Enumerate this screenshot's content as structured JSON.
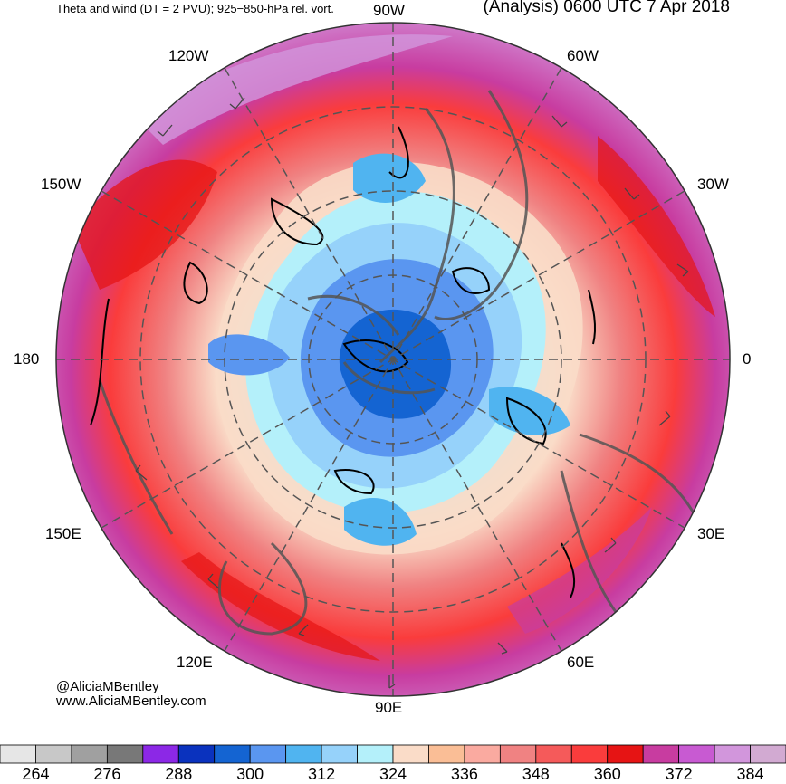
{
  "header": {
    "left_title": "Theta and wind (DT = 2 PVU); 925−850-hPa rel. vort.",
    "right_title": "(Analysis) 0600 UTC 7 Apr 2018"
  },
  "longitude_labels": {
    "w90": "90W",
    "w60": "60W",
    "w30": "30W",
    "zero": "0",
    "e30": "30E",
    "e60": "60E",
    "e90": "90E",
    "e120": "120E",
    "e150": "150E",
    "d180": "180",
    "w150": "150W",
    "w120": "120W"
  },
  "credits": {
    "handle": "@AliciaMBentley",
    "website": "www.AliciaMBentley.com"
  },
  "colorbar": {
    "colors": [
      "#e6e6e6",
      "#c8c8c8",
      "#a0a0a0",
      "#787878",
      "#8c28e6",
      "#0a32be",
      "#1464d2",
      "#5a96f0",
      "#50b4f0",
      "#96d2fa",
      "#b4f0fa",
      "#fadcc8",
      "#fabe96",
      "#faaaa0",
      "#f08282",
      "#f55a5a",
      "#fa3c3c",
      "#e61414",
      "#c83ca0",
      "#c85ad2",
      "#d296dc",
      "#d2aad2"
    ],
    "tick_labels": [
      "264",
      "276",
      "288",
      "300",
      "312",
      "324",
      "336",
      "348",
      "360",
      "372",
      "384"
    ]
  }
}
